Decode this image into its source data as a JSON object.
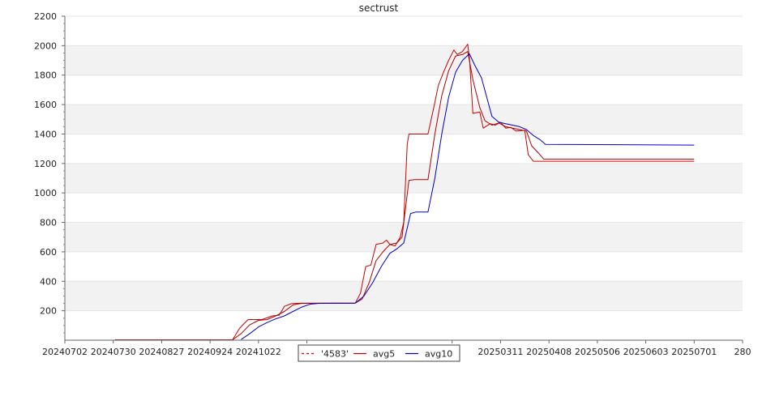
{
  "chart_data": {
    "type": "line",
    "title": "sectrust",
    "xlabel": "",
    "ylabel": "",
    "ylim": [
      0,
      2200
    ],
    "xlim": [
      "2024-07-02",
      "2025-07-29"
    ],
    "y_ticks": [
      "200",
      "400",
      "600",
      "800",
      "1000",
      "1200",
      "1400",
      "1600",
      "1800",
      "2000",
      "2200"
    ],
    "x_ticks": [
      {
        "date": "2024-07-02",
        "label": "20240702"
      },
      {
        "date": "2024-07-30",
        "label": "20240730"
      },
      {
        "date": "2024-08-27",
        "label": "20240827"
      },
      {
        "date": "2024-09-24",
        "label": "20240924"
      },
      {
        "date": "2024-10-22",
        "label": "20241022"
      },
      {
        "date": "2024-11-19",
        "label": "202"
      },
      {
        "date": "2025-02-11",
        "label": "211"
      },
      {
        "date": "2025-03-11",
        "label": "20250311"
      },
      {
        "date": "2025-04-08",
        "label": "20250408"
      },
      {
        "date": "2025-05-06",
        "label": "20250506"
      },
      {
        "date": "2025-06-03",
        "label": "20250603"
      },
      {
        "date": "2025-07-01",
        "label": "20250701"
      },
      {
        "date": "2025-07-29",
        "label": "280"
      }
    ],
    "grid": "horizontal bands",
    "legend_position": "bottom-center",
    "series": [
      {
        "name": "'4583'",
        "color": "#cc0000",
        "dashed_legend": true,
        "points": [
          [
            "2024-07-31",
            3
          ],
          [
            "2024-08-18",
            3
          ],
          [
            "2024-09-08",
            3
          ],
          [
            "2024-09-09",
            1
          ],
          [
            "2024-09-13",
            3
          ],
          [
            "2024-10-07",
            3
          ],
          [
            "2024-10-11",
            80
          ],
          [
            "2024-10-13",
            105
          ],
          [
            "2024-10-16",
            140
          ],
          [
            "2024-10-24",
            140
          ],
          [
            "2024-10-30",
            165
          ],
          [
            "2024-11-03",
            170
          ],
          [
            "2024-11-06",
            230
          ],
          [
            "2024-11-10",
            248
          ],
          [
            "2024-11-16",
            252
          ],
          [
            "2024-12-17",
            252
          ],
          [
            "2024-12-20",
            320
          ],
          [
            "2024-12-23",
            500
          ],
          [
            "2024-12-26",
            510
          ],
          [
            "2024-12-29",
            650
          ],
          [
            "2025-01-02",
            660
          ],
          [
            "2025-01-04",
            680
          ],
          [
            "2025-01-06",
            650
          ],
          [
            "2025-01-09",
            640
          ],
          [
            "2025-01-12",
            700
          ],
          [
            "2025-01-14",
            800
          ],
          [
            "2025-01-16",
            1330
          ],
          [
            "2025-01-17",
            1400
          ],
          [
            "2025-01-28",
            1400
          ],
          [
            "2025-01-31",
            1560
          ],
          [
            "2025-02-03",
            1730
          ],
          [
            "2025-02-06",
            1820
          ],
          [
            "2025-02-09",
            1900
          ],
          [
            "2025-02-12",
            1970
          ],
          [
            "2025-02-14",
            1940
          ],
          [
            "2025-02-17",
            1960
          ],
          [
            "2025-02-20",
            2010
          ],
          [
            "2025-02-21",
            1920
          ],
          [
            "2025-02-23",
            1540
          ],
          [
            "2025-02-27",
            1550
          ],
          [
            "2025-03-01",
            1440
          ],
          [
            "2025-03-05",
            1470
          ],
          [
            "2025-03-08",
            1460
          ],
          [
            "2025-03-11",
            1480
          ],
          [
            "2025-03-14",
            1440
          ],
          [
            "2025-03-17",
            1445
          ],
          [
            "2025-03-20",
            1420
          ],
          [
            "2025-03-25",
            1425
          ],
          [
            "2025-03-27",
            1260
          ],
          [
            "2025-03-30",
            1215
          ],
          [
            "2025-07-01",
            1215
          ]
        ]
      },
      {
        "name": "avg5",
        "color": "#b00000",
        "points": [
          [
            "2024-07-31",
            3
          ],
          [
            "2024-08-18",
            3
          ],
          [
            "2024-09-08",
            3
          ],
          [
            "2024-09-13",
            3
          ],
          [
            "2024-10-07",
            3
          ],
          [
            "2024-10-12",
            45
          ],
          [
            "2024-10-17",
            105
          ],
          [
            "2024-10-22",
            135
          ],
          [
            "2024-10-27",
            140
          ],
          [
            "2024-11-01",
            165
          ],
          [
            "2024-11-06",
            195
          ],
          [
            "2024-11-11",
            240
          ],
          [
            "2024-11-16",
            250
          ],
          [
            "2024-12-17",
            252
          ],
          [
            "2024-12-21",
            280
          ],
          [
            "2024-12-25",
            390
          ],
          [
            "2024-12-29",
            540
          ],
          [
            "2025-01-02",
            600
          ],
          [
            "2025-01-06",
            650
          ],
          [
            "2025-01-10",
            660
          ],
          [
            "2025-01-13",
            700
          ],
          [
            "2025-01-17",
            1085
          ],
          [
            "2025-01-20",
            1090
          ],
          [
            "2025-01-28",
            1090
          ],
          [
            "2025-02-01",
            1400
          ],
          [
            "2025-02-05",
            1660
          ],
          [
            "2025-02-09",
            1830
          ],
          [
            "2025-02-13",
            1930
          ],
          [
            "2025-02-17",
            1940
          ],
          [
            "2025-02-20",
            1960
          ],
          [
            "2025-02-23",
            1770
          ],
          [
            "2025-02-27",
            1580
          ],
          [
            "2025-03-02",
            1490
          ],
          [
            "2025-03-06",
            1460
          ],
          [
            "2025-03-10",
            1475
          ],
          [
            "2025-03-14",
            1450
          ],
          [
            "2025-03-18",
            1440
          ],
          [
            "2025-03-22",
            1430
          ],
          [
            "2025-03-26",
            1420
          ],
          [
            "2025-03-29",
            1320
          ],
          [
            "2025-04-02",
            1270
          ],
          [
            "2025-04-05",
            1230
          ],
          [
            "2025-07-01",
            1230
          ]
        ]
      },
      {
        "name": "avg10",
        "color": "#0000cc",
        "points": [
          [
            "2024-10-12",
            5
          ],
          [
            "2024-10-17",
            45
          ],
          [
            "2024-10-22",
            90
          ],
          [
            "2024-10-27",
            120
          ],
          [
            "2024-11-01",
            145
          ],
          [
            "2024-11-06",
            165
          ],
          [
            "2024-11-11",
            195
          ],
          [
            "2024-11-16",
            225
          ],
          [
            "2024-11-21",
            245
          ],
          [
            "2024-11-26",
            250
          ],
          [
            "2024-12-17",
            252
          ],
          [
            "2024-12-22",
            300
          ],
          [
            "2024-12-27",
            390
          ],
          [
            "2025-01-01",
            500
          ],
          [
            "2025-01-06",
            590
          ],
          [
            "2025-01-10",
            620
          ],
          [
            "2025-01-14",
            660
          ],
          [
            "2025-01-18",
            860
          ],
          [
            "2025-01-21",
            870
          ],
          [
            "2025-01-28",
            870
          ],
          [
            "2025-02-01",
            1100
          ],
          [
            "2025-02-05",
            1400
          ],
          [
            "2025-02-09",
            1650
          ],
          [
            "2025-02-13",
            1820
          ],
          [
            "2025-02-17",
            1900
          ],
          [
            "2025-02-21",
            1945
          ],
          [
            "2025-02-24",
            1870
          ],
          [
            "2025-02-28",
            1780
          ],
          [
            "2025-03-03",
            1650
          ],
          [
            "2025-03-06",
            1520
          ],
          [
            "2025-03-10",
            1480
          ],
          [
            "2025-03-14",
            1470
          ],
          [
            "2025-03-18",
            1460
          ],
          [
            "2025-03-22",
            1450
          ],
          [
            "2025-03-26",
            1430
          ],
          [
            "2025-03-30",
            1390
          ],
          [
            "2025-04-03",
            1360
          ],
          [
            "2025-04-06",
            1330
          ],
          [
            "2025-07-01",
            1325
          ]
        ]
      }
    ]
  }
}
